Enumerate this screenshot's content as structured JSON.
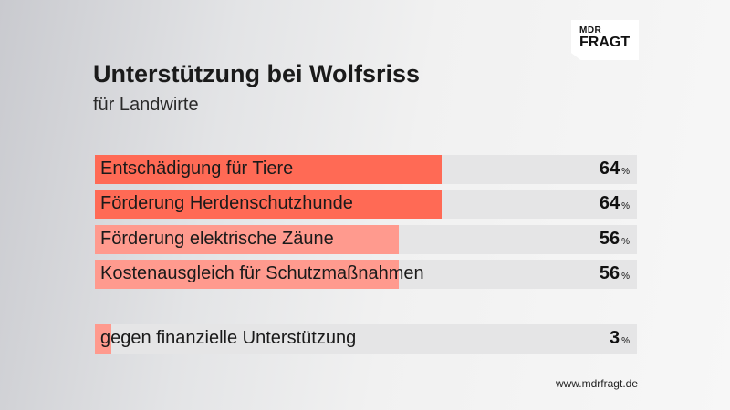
{
  "logo": {
    "line1": "MDR",
    "line2": "FRAGT"
  },
  "chart_data": {
    "type": "bar",
    "title": "Unterstützung bei Wolfsriss",
    "subtitle": "für Landwirte",
    "orientation": "horizontal",
    "unit": "%",
    "categories": [
      "Entschädigung für Tiere",
      "Förderung Herdenschutzhunde",
      "Förderung elektrische Zäune",
      "Kostenausgleich für Schutzmaßnahmen",
      "gegen finanzielle Unterstützung"
    ],
    "values": [
      64,
      64,
      56,
      56,
      3
    ],
    "xlim": [
      0,
      100
    ],
    "colors": {
      "bar_strong": "#ff6a55",
      "bar_light": "#ff9a8e",
      "track": "#e5e5e6"
    }
  },
  "source": "www.mdrfragt.de"
}
